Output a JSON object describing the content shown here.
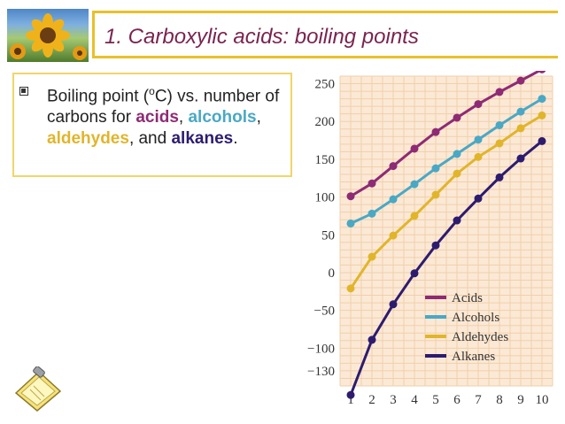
{
  "slide": {
    "title": "1.  Carboxylic acids: boiling points",
    "bullet": {
      "prefix": "Boiling point (",
      "sup": "o",
      "mid": "C) vs. number of carbons for ",
      "acids": "acids",
      "sep1": ", ",
      "alcohols": "alcohols",
      "sep2": ", ",
      "aldehydes": "aldehydes",
      "sep3": ", and ",
      "alkanes": "alkanes",
      "end": "."
    }
  },
  "icons": {
    "photo": "sunflower-photo-icon",
    "clipboard": "clipboard-icon",
    "bullet": "square-bullet-icon"
  },
  "colors": {
    "accent_border": "#e9c02a",
    "title": "#7a2450",
    "grid_bg": "#fbe9d6",
    "grid_line": "#f2cfa9",
    "acids": "#8e2b74",
    "alcohols": "#4aa8c4",
    "aldehydes": "#e1b52b",
    "alkanes": "#2d1c6e"
  },
  "chart_data": {
    "type": "line",
    "x": [
      1,
      2,
      3,
      4,
      5,
      6,
      7,
      8,
      9,
      10
    ],
    "y_ticks": [
      250,
      200,
      150,
      100,
      50,
      0,
      -50,
      -100,
      -130
    ],
    "y_tick_labels": [
      "250",
      "200",
      "150",
      "100",
      "50",
      "0",
      "−50",
      "−100",
      "−130"
    ],
    "x_tick_labels": [
      "1",
      "2",
      "3",
      "4",
      "5",
      "6",
      "7",
      "8",
      "9",
      "10"
    ],
    "ylim": [
      -150,
      260
    ],
    "grid": true,
    "legend_position": "bottom-right",
    "series": [
      {
        "name": "Acids",
        "color": "#8e2b74",
        "values": [
          101,
          118,
          141,
          164,
          186,
          205,
          223,
          239,
          254,
          269
        ]
      },
      {
        "name": "Alcohols",
        "color": "#4aa8c4",
        "values": [
          65,
          78,
          97,
          117,
          138,
          157,
          176,
          195,
          213,
          230
        ]
      },
      {
        "name": "Aldehydes",
        "color": "#e1b52b",
        "values": [
          -21,
          21,
          49,
          75,
          103,
          131,
          153,
          171,
          191,
          208
        ]
      },
      {
        "name": "Alkanes",
        "color": "#2d1c6e",
        "values": [
          -162,
          -89,
          -42,
          -1,
          36,
          69,
          98,
          126,
          151,
          174
        ]
      }
    ]
  }
}
